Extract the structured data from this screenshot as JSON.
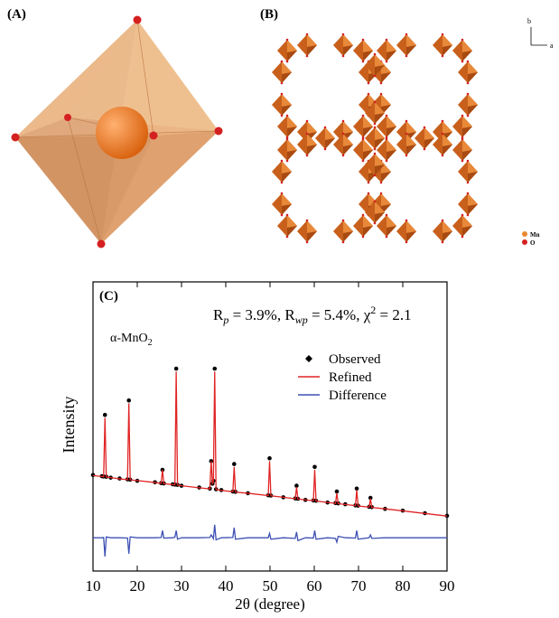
{
  "panels": {
    "a": {
      "label": "(A)"
    },
    "b": {
      "label": "(B)",
      "axis_labels": [
        "b",
        "a"
      ],
      "legend": [
        "Mn",
        "O"
      ]
    }
  },
  "chart_data": {
    "type": "xrd",
    "panel_label": "(C)",
    "annotation": [
      "R",
      "p",
      " = 3.9%, R",
      "wp",
      " = 5.4%, χ",
      "2",
      " = 2.1"
    ],
    "phase": [
      "α-MnO",
      "2"
    ],
    "x_label": "2θ (degree)",
    "y_label": "Intensity",
    "xlim": [
      10,
      90
    ],
    "xticks": [
      10,
      20,
      30,
      40,
      50,
      60,
      70,
      80,
      90
    ],
    "ylim": [
      0,
      100
    ],
    "legend": "upper right",
    "x": [
      10,
      12,
      12.4,
      12.7,
      13,
      14,
      16,
      17.8,
      18.1,
      18.4,
      20,
      24,
      25.4,
      25.7,
      26,
      28,
      28.5,
      28.8,
      29.1,
      30,
      34,
      36.4,
      36.7,
      37,
      37.2,
      37.5,
      37.8,
      39,
      41.6,
      41.9,
      42.2,
      45,
      49.6,
      49.9,
      50.2,
      53,
      55.7,
      56,
      56.3,
      58,
      59.8,
      60.1,
      60.4,
      63,
      64.8,
      65.1,
      65.4,
      67,
      69.3,
      69.6,
      69.9,
      72.4,
      72.7,
      73,
      76,
      80,
      85,
      90
    ],
    "series": [
      {
        "name": "Observed",
        "color": "#000000",
        "marker": "dot",
        "values": [
          33.2,
          32.8,
          32.7,
          54,
          32.6,
          32.3,
          32,
          31.7,
          59,
          31.6,
          31.2,
          30.7,
          30.4,
          35,
          30.3,
          30,
          29.9,
          70,
          29.8,
          29.5,
          28.9,
          28.5,
          38,
          30.2,
          31.2,
          70,
          28.3,
          28,
          27.5,
          37,
          27.4,
          26.9,
          26.2,
          39,
          26.1,
          25.5,
          25.1,
          29.5,
          25,
          24.6,
          24.4,
          36,
          24.3,
          23.7,
          23.5,
          27.5,
          23.4,
          23.1,
          22.7,
          28.5,
          22.6,
          22.2,
          25.3,
          22.1,
          21.5,
          20.9,
          20,
          19.1
        ]
      },
      {
        "name": "Refined",
        "color": "#e02424",
        "marker": "line",
        "values": [
          33,
          32.7,
          32.6,
          53,
          32.5,
          32.3,
          31.9,
          31.6,
          58,
          31.5,
          31.3,
          30.6,
          30.3,
          35,
          30.2,
          29.9,
          29.8,
          69,
          29.7,
          29.5,
          28.8,
          28.4,
          38,
          30,
          31,
          69,
          28.2,
          27.9,
          27.4,
          36,
          27.3,
          26.9,
          26.1,
          38,
          26,
          25.5,
          25,
          29,
          24.9,
          24.6,
          24.3,
          35,
          24.2,
          23.7,
          23.4,
          27,
          23.3,
          23,
          22.6,
          28,
          22.5,
          22.1,
          25,
          22,
          21.5,
          20.8,
          19.9,
          19
        ]
      },
      {
        "name": "Difference",
        "color": "#3d50b4",
        "marker": "line",
        "values": [
          11.5,
          11.5,
          11.6,
          5,
          11.8,
          11.5,
          11.5,
          11.4,
          6,
          11.8,
          11.5,
          11.5,
          11.6,
          14,
          11.4,
          11.5,
          11.7,
          14,
          11,
          11.5,
          11.5,
          11.6,
          12.5,
          11.8,
          11.2,
          16,
          10.8,
          11.5,
          11.6,
          15,
          11,
          11.5,
          11.5,
          13,
          11,
          11.5,
          11.3,
          13.5,
          10.5,
          11.5,
          11.4,
          14,
          11,
          11.5,
          11.3,
          10,
          12,
          11.5,
          11.4,
          14,
          11,
          11.5,
          12.5,
          11.3,
          11.5,
          11.5,
          11.5,
          11.5
        ]
      }
    ]
  }
}
